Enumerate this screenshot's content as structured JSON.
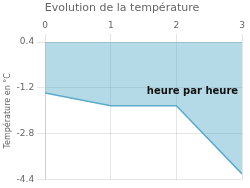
{
  "chart_data": {
    "type": "line",
    "title": "Evolution de la température",
    "ylabel": "Température en °C",
    "x": [
      0,
      1,
      2,
      3
    ],
    "values": [
      -1.38,
      -1.82,
      -1.82,
      -4.2
    ],
    "color": "#5aacca",
    "xlim": [
      0,
      3
    ],
    "ylim": [
      -4.4,
      0.4
    ],
    "xticks": [
      0,
      1,
      2,
      3
    ],
    "yticks": [
      0.4,
      -1.2,
      -2.8,
      -4.4
    ],
    "grid": true,
    "annotations": [
      {
        "text": "heure par heure",
        "x": 1.55,
        "y": -1.15
      }
    ]
  }
}
